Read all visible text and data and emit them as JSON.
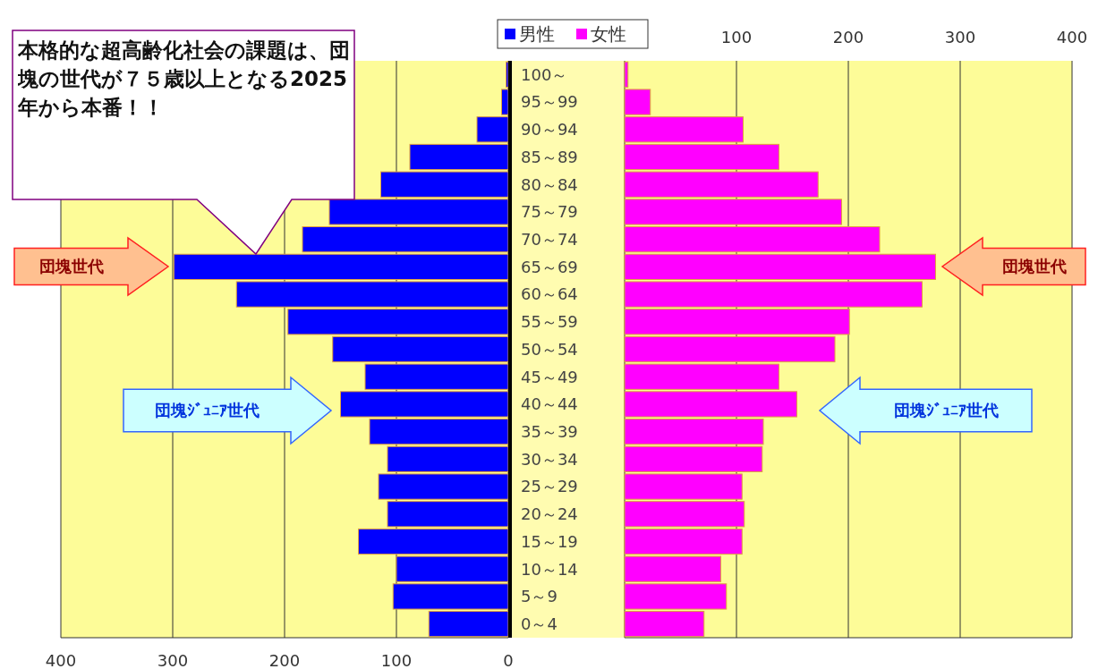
{
  "chart_data": [
    {
      "type": "bar",
      "orientation": "horizontal",
      "categories": [
        "100～",
        "95～99",
        "90～94",
        "85～89",
        "80～84",
        "75～79",
        "70～74",
        "65～69",
        "60～64",
        "55～59",
        "50～54",
        "45～49",
        "40～44",
        "35～39",
        "30～34",
        "25～29",
        "20～24",
        "15～19",
        "10～14",
        "5～9",
        "0～4"
      ],
      "series": [
        {
          "name": "男性",
          "color": "#0000ff",
          "values": [
            2,
            6,
            28,
            88,
            114,
            160,
            184,
            299,
            243,
            197,
            157,
            128,
            150,
            124,
            108,
            116,
            108,
            134,
            100,
            103,
            71
          ]
        }
      ],
      "xlim": [
        400,
        0
      ],
      "xticks": [
        400,
        300,
        200,
        100,
        0
      ],
      "grid": "x",
      "legend": "top",
      "annotations": [
        "本格的な超高齢化社会の課題は、団塊の世代が７５歳以上となる2025年から本番！！",
        "団塊世代",
        "団塊ｼﾞｭﾆｱ世代"
      ]
    },
    {
      "type": "bar",
      "orientation": "horizontal",
      "categories": [
        null,
        null,
        null,
        null,
        null,
        null,
        null,
        null,
        null,
        null,
        null,
        null,
        null,
        null,
        null,
        null,
        null,
        null,
        null,
        null,
        null
      ],
      "series": [
        {
          "name": "女性",
          "color": "#ff00ff",
          "values": [
            3,
            23,
            106,
            138,
            173,
            194,
            228,
            278,
            266,
            201,
            188,
            138,
            154,
            124,
            123,
            105,
            107,
            105,
            86,
            91,
            71
          ]
        }
      ],
      "xlim": [
        0,
        400
      ],
      "xticks": [
        {
          "value": 0,
          "label": null
        },
        100,
        200,
        300,
        400
      ],
      "grid": "x",
      "legend": "top",
      "annotations": [
        "団塊世代",
        "団塊ｼﾞｭﾆｱ世代"
      ]
    }
  ]
}
